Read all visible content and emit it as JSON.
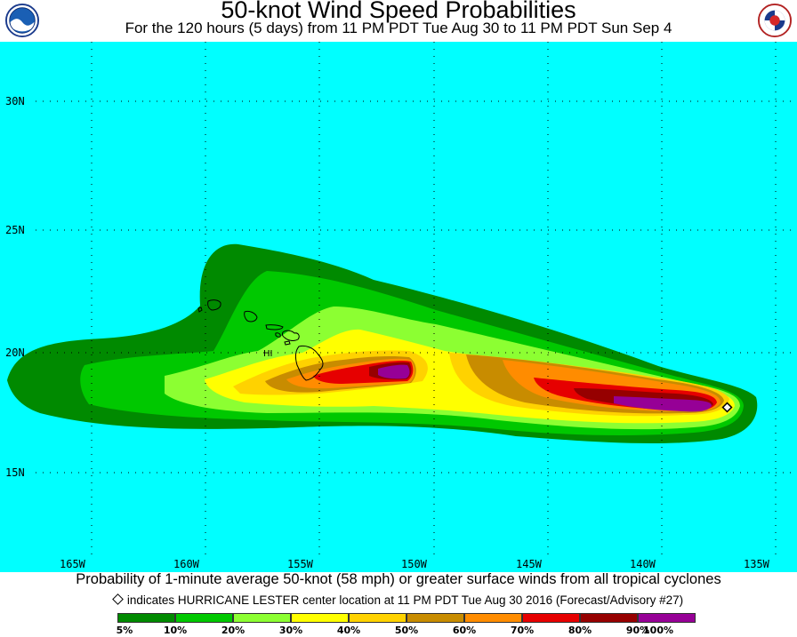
{
  "header": {
    "title": "50-knot Wind Speed Probabilities",
    "subtitle": "For the 120 hours (5 days) from 11 PM PDT Tue Aug 30 to 11 PM PDT Sun Sep 4"
  },
  "logos": {
    "left": "noaa-logo",
    "right": "nws-logo"
  },
  "map": {
    "ocean_color": "#00ffff",
    "lat_labels": [
      "30N",
      "25N",
      "20N",
      "15N"
    ],
    "lon_labels": [
      "165W",
      "160W",
      "155W",
      "150W",
      "145W",
      "140W",
      "135W"
    ],
    "island_label": "HI",
    "storm_marker": "storm-center-diamond-icon"
  },
  "caption": "Probability of 1-minute average 50-knot (58 mph) or greater surface winds from all tropical cyclones",
  "note": "indicates HURRICANE LESTER center location at 11 PM PDT Tue Aug 30 2016 (Forecast/Advisory #27)",
  "legend": {
    "colors": [
      "#008a00",
      "#00c800",
      "#8cff32",
      "#ffff00",
      "#ffd200",
      "#c88c00",
      "#ff8c00",
      "#e60000",
      "#960000",
      "#960096"
    ],
    "labels": [
      "5%",
      "10%",
      "20%",
      "30%",
      "40%",
      "50%",
      "60%",
      "70%",
      "80%",
      "90%",
      "100%"
    ]
  }
}
